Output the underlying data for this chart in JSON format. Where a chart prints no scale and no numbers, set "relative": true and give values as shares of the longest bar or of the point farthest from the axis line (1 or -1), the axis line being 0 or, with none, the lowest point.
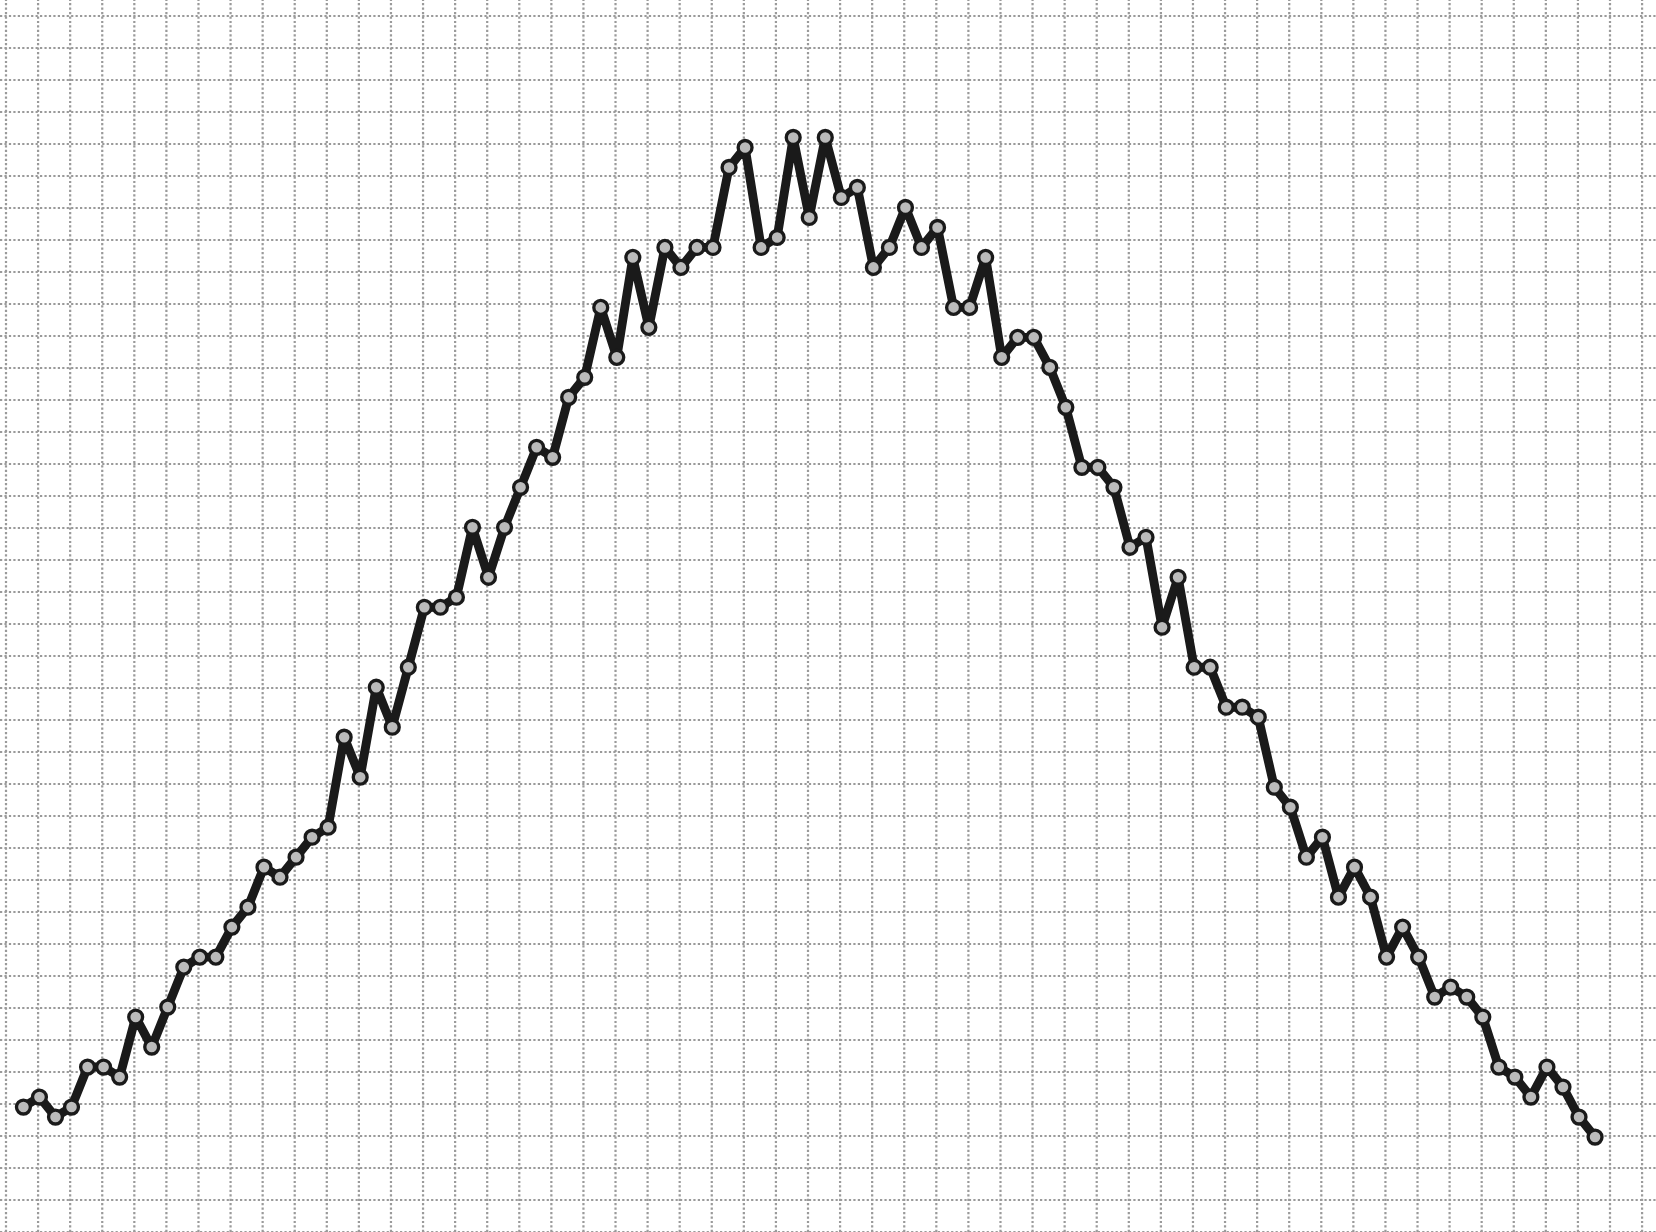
{
  "chart_data": {
    "type": "line",
    "relative": true,
    "grid": true,
    "marker": "circle",
    "line_style": "solid",
    "categories": [
      null,
      null,
      null,
      null,
      null,
      null,
      null,
      null,
      null,
      null,
      null,
      null,
      null,
      null,
      null,
      null,
      null,
      null,
      null,
      null,
      null,
      null,
      null,
      null,
      null,
      null,
      null,
      null,
      null,
      null,
      null,
      null,
      null,
      null,
      null,
      null,
      null,
      null,
      null,
      null,
      null,
      null,
      null,
      null,
      null,
      null,
      null,
      null,
      null,
      null,
      null,
      null,
      null,
      null,
      null,
      null,
      null,
      null,
      null,
      null,
      null,
      null,
      null,
      null,
      null,
      null,
      null,
      null,
      null,
      null,
      null,
      null,
      null,
      null,
      null,
      null,
      null,
      null,
      null,
      null,
      null,
      null,
      null,
      null,
      null,
      null,
      null,
      null,
      null,
      null,
      null,
      null,
      null,
      null,
      null,
      null,
      null,
      null,
      null
    ],
    "series": [
      {
        "color": "#1a1a1a",
        "values": [
          0.03,
          0.04,
          0.02,
          0.03,
          0.07,
          0.07,
          0.06,
          0.12,
          0.09,
          0.13,
          0.17,
          0.18,
          0.18,
          0.21,
          0.23,
          0.27,
          0.26,
          0.28,
          0.3,
          0.31,
          0.4,
          0.36,
          0.45,
          0.41,
          0.47,
          0.53,
          0.53,
          0.54,
          0.61,
          0.56,
          0.61,
          0.65,
          0.69,
          0.68,
          0.74,
          0.76,
          0.83,
          0.78,
          0.88,
          0.81,
          0.89,
          0.87,
          0.89,
          0.89,
          0.97,
          0.99,
          0.89,
          0.9,
          1.0,
          0.92,
          1.0,
          0.94,
          0.95,
          0.87,
          0.89,
          0.93,
          0.89,
          0.91,
          0.83,
          0.83,
          0.88,
          0.78,
          0.8,
          0.8,
          0.77,
          0.73,
          0.67,
          0.67,
          0.65,
          0.59,
          0.6,
          0.51,
          0.56,
          0.47,
          0.47,
          0.43,
          0.43,
          0.42,
          0.35,
          0.33,
          0.28,
          0.3,
          0.24,
          0.27,
          0.24,
          0.18,
          0.21,
          0.18,
          0.14,
          0.15,
          0.14,
          0.12,
          0.07,
          0.06,
          0.04,
          0.07,
          0.05,
          0.02,
          0.0
        ]
      }
    ]
  }
}
